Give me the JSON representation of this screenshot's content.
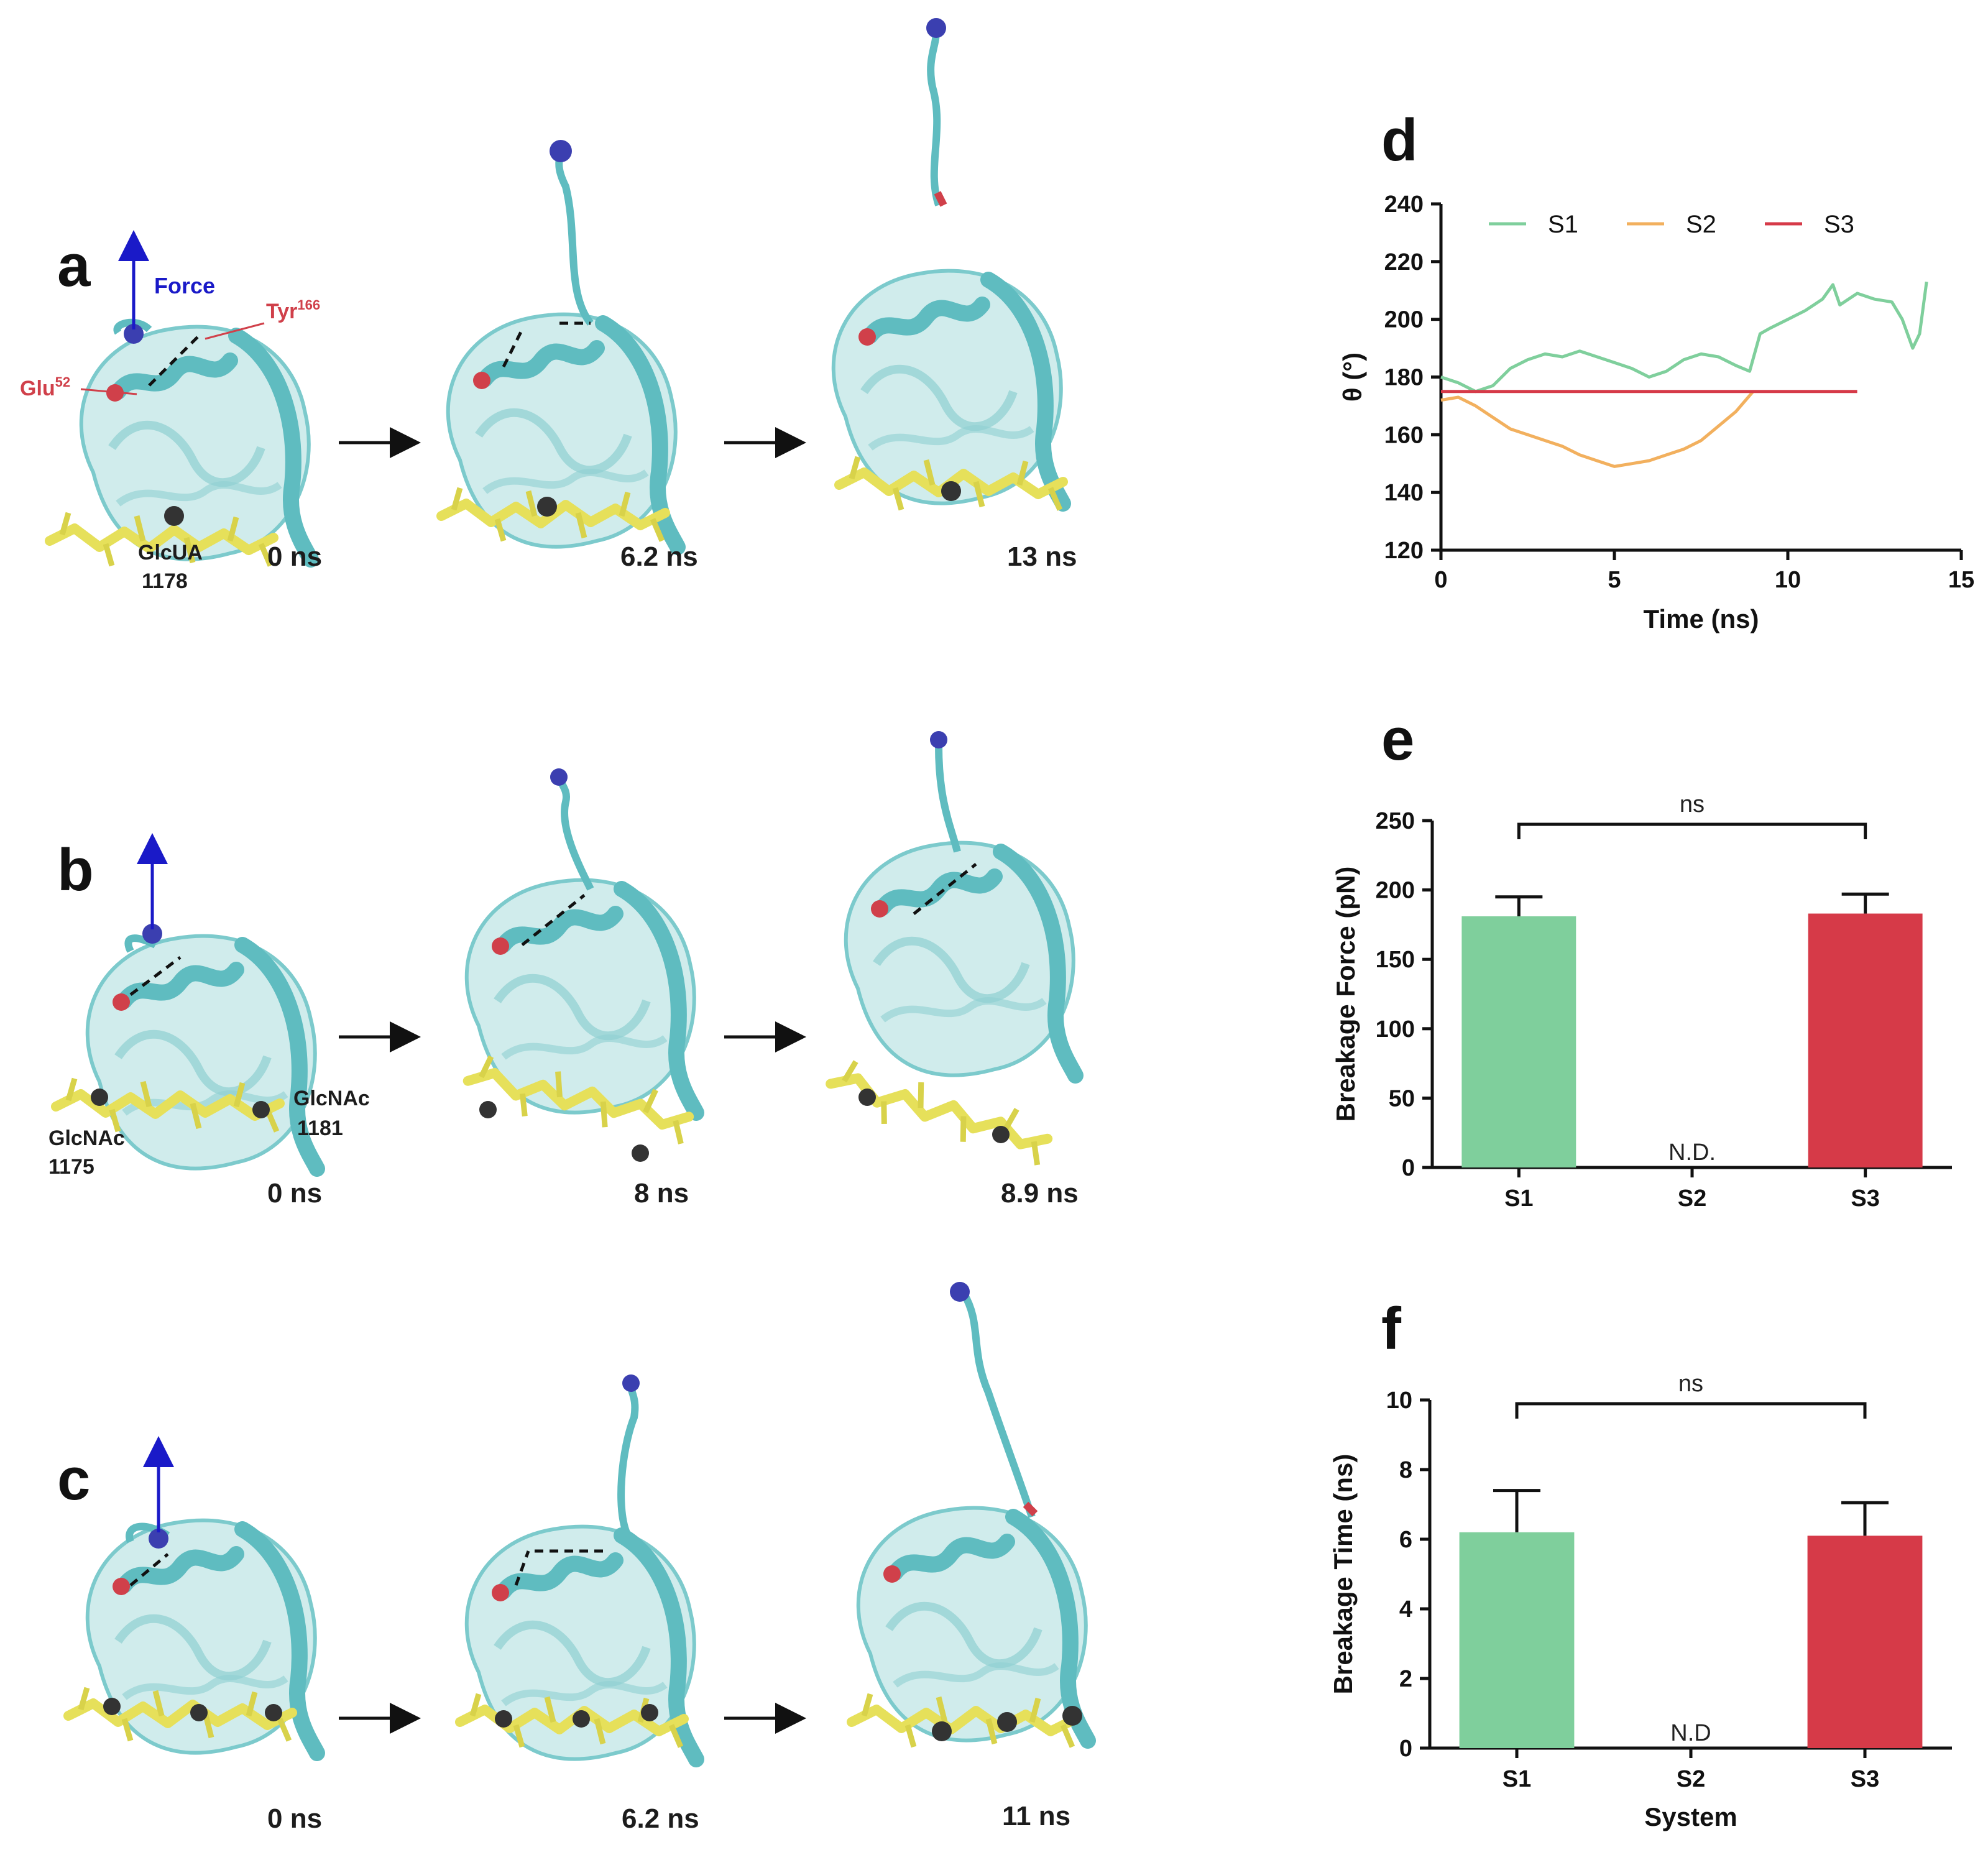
{
  "panels": {
    "a": {
      "label": "a",
      "times": [
        "0 ns",
        "6.2 ns",
        "13 ns"
      ],
      "force_label": "Force",
      "residues": {
        "tyr": "Tyr",
        "tyr_sup": "166",
        "glu": "Glu",
        "glu_sup": "52"
      },
      "glycan": {
        "name": "GlcUA",
        "number": "1178"
      }
    },
    "b": {
      "label": "b",
      "times": [
        "0 ns",
        "8 ns",
        "8.9 ns"
      ],
      "glycans": [
        {
          "name": "GlcNAc",
          "number": "1175"
        },
        {
          "name": "GlcNAc",
          "number": "1181"
        }
      ]
    },
    "c": {
      "label": "c",
      "times": [
        "0 ns",
        "6.2 ns",
        "11 ns"
      ]
    }
  },
  "colors": {
    "S1": "#7fcf9c",
    "S2": "#f2b05e",
    "S3": "#d63a48",
    "protein": "#5fbcc0",
    "protein_light": "#a9dcdd",
    "glycan": "#e6e05a",
    "anchor": "#3b3fb0",
    "force_arrow": "#1a1ac8",
    "residue": "#d0404a"
  },
  "chart_data": [
    {
      "panel": "d",
      "type": "line",
      "xlabel": "Time (ns)",
      "ylabel": "θ (°)",
      "xlim": [
        0,
        15
      ],
      "ylim": [
        120,
        240
      ],
      "xticks": [
        0,
        5,
        10,
        15
      ],
      "yticks": [
        120,
        140,
        160,
        180,
        200,
        220,
        240
      ],
      "legend_position": "top",
      "series": [
        {
          "name": "S1",
          "x": [
            0,
            0.5,
            1,
            1.5,
            2,
            2.5,
            3,
            3.5,
            4,
            4.5,
            5,
            5.5,
            6,
            6.5,
            7,
            7.5,
            8,
            8.5,
            8.9,
            9.2,
            9.5,
            10,
            10.5,
            11,
            11.3,
            11.5,
            12,
            12.5,
            13,
            13.3,
            13.6,
            13.8,
            14
          ],
          "y": [
            180,
            178,
            175,
            177,
            183,
            186,
            188,
            187,
            189,
            187,
            185,
            183,
            180,
            182,
            186,
            188,
            187,
            184,
            182,
            195,
            197,
            200,
            203,
            207,
            212,
            205,
            209,
            207,
            206,
            200,
            190,
            195,
            213
          ]
        },
        {
          "name": "S2",
          "x": [
            0,
            0.5,
            1,
            1.5,
            2,
            2.5,
            3,
            3.5,
            4,
            4.5,
            5,
            5.5,
            6,
            6.5,
            7,
            7.5,
            8,
            8.5,
            9
          ],
          "y": [
            172,
            173,
            170,
            166,
            162,
            160,
            158,
            156,
            153,
            151,
            149,
            150,
            151,
            153,
            155,
            158,
            163,
            168,
            175
          ]
        },
        {
          "name": "S3",
          "x": [
            0,
            12
          ],
          "y": [
            175,
            175
          ]
        }
      ]
    },
    {
      "panel": "e",
      "type": "bar",
      "xlabel": "",
      "ylabel": "Breakage Force (pN)",
      "categories": [
        "S1",
        "S2",
        "S3"
      ],
      "values": [
        181,
        null,
        183
      ],
      "errors": [
        14,
        null,
        14
      ],
      "ylim": [
        0,
        250
      ],
      "yticks": [
        0,
        50,
        100,
        150,
        200,
        250
      ],
      "annotations": {
        "S2": "N.D."
      },
      "significance": {
        "pair": [
          "S1",
          "S3"
        ],
        "label": "ns"
      }
    },
    {
      "panel": "f",
      "type": "bar",
      "xlabel": "System",
      "ylabel": "Breakage Time (ns)",
      "categories": [
        "S1",
        "S2",
        "S3"
      ],
      "values": [
        6.2,
        null,
        6.1
      ],
      "errors": [
        1.2,
        null,
        0.95
      ],
      "ylim": [
        0,
        10
      ],
      "yticks": [
        0,
        2,
        4,
        6,
        8,
        10
      ],
      "annotations": {
        "S2": "N.D"
      },
      "significance": {
        "pair": [
          "S1",
          "S3"
        ],
        "label": "ns"
      }
    }
  ]
}
